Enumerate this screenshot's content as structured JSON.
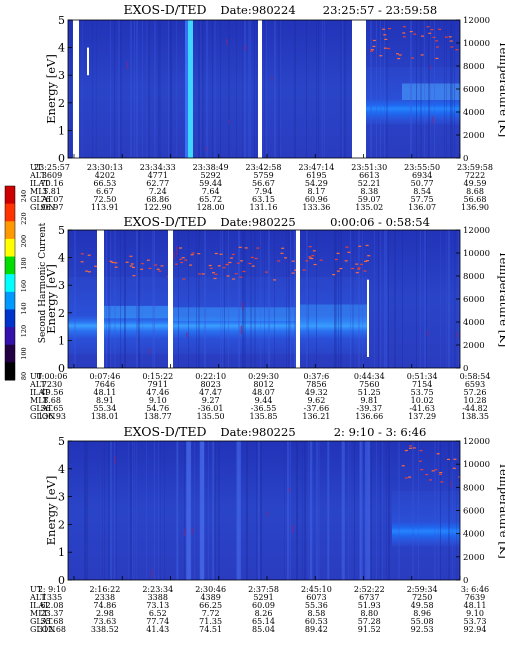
{
  "colorbar": {
    "label": "Second Harmonic Current",
    "ticks": [
      "240",
      "220",
      "200",
      "180",
      "160",
      "140",
      "120",
      "100",
      "80"
    ],
    "colors": [
      "#cc0000",
      "#ff3300",
      "#ff9900",
      "#ffff00",
      "#00dd00",
      "#00ffff",
      "#0099ff",
      "#0033cc",
      "#3311aa",
      "#220044",
      "#000000"
    ]
  },
  "chart_data": [
    {
      "type": "heatmap",
      "title": "EXOS-D/TED",
      "date_label": "Date:980224",
      "time_range": "23:25:57 - 23:59:58",
      "ylabel": "Energy [eV]",
      "ylabel_right": "Temperature [K]",
      "ylim": [
        0,
        5
      ],
      "ylim_right": [
        0,
        12000
      ],
      "yticks": [
        "0",
        "1",
        "2",
        "3",
        "4",
        "5"
      ],
      "yticks_right": [
        "0",
        "2000",
        "4000",
        "6000",
        "8000",
        "10000",
        "12000"
      ],
      "row_labels": [
        "UT",
        "ALT",
        "ILAT",
        "MLT",
        "GLAT",
        "GLON"
      ],
      "columns": [
        [
          "23:25:57",
          "3609",
          "70.16",
          "5.81",
          "76.07",
          "96.97"
        ],
        [
          "23:30:13",
          "4202",
          "66.53",
          "6.67",
          "72.50",
          "113.91"
        ],
        [
          "23:34:33",
          "4771",
          "62.77",
          "7.24",
          "68.86",
          "122.90"
        ],
        [
          "23:38:49",
          "5292",
          "59.44",
          "7.64",
          "65.72",
          "128.00"
        ],
        [
          "23:42:58",
          "5759",
          "56.67",
          "7.94",
          "63.15",
          "131.16"
        ],
        [
          "23:47:14",
          "6195",
          "54.29",
          "8.17",
          "60.96",
          "133.36"
        ],
        [
          "23:51:30",
          "6613",
          "52.21",
          "8.38",
          "59.07",
          "135.02"
        ],
        [
          "23:55:50",
          "6934",
          "50.77",
          "8.54",
          "57.75",
          "136.07"
        ],
        [
          "23:59:58",
          "7222",
          "49.59",
          "8.68",
          "56.68",
          "136.90"
        ]
      ]
    },
    {
      "type": "heatmap",
      "title": "EXOS-D/TED",
      "date_label": "Date:980225",
      "time_range": "0:00:06 - 0:58:54",
      "ylabel": "Energy [eV]",
      "ylabel_right": "Temperature [K]",
      "ylim": [
        0,
        5
      ],
      "ylim_right": [
        0,
        12000
      ],
      "yticks": [
        "0",
        "1",
        "2",
        "3",
        "4",
        "5"
      ],
      "yticks_right": [
        "0",
        "2000",
        "4000",
        "6000",
        "8000",
        "10000",
        "12000"
      ],
      "row_labels": [
        "UT",
        "ALT",
        "ILAT",
        "MLT",
        "GLAT",
        "GLON"
      ],
      "columns": [
        [
          "0:00:06",
          "7230",
          "49.56",
          "8.68",
          "56.65",
          "136.93"
        ],
        [
          "0:07:46",
          "7646",
          "48.11",
          "8.91",
          "55.34",
          "138.01"
        ],
        [
          "0:15:22",
          "7911",
          "47.46",
          "9.10",
          "54.76",
          "138.77"
        ],
        [
          "0:22:10",
          "8023",
          "47.47",
          "9.27",
          "-36.01",
          "135.50"
        ],
        [
          "0:29:30",
          "8012",
          "48.07",
          "9.44",
          "-36.55",
          "135.85"
        ],
        [
          "0:37:6",
          "7856",
          "49.32",
          "9.62",
          "-37.66",
          "136.21"
        ],
        [
          "0:44:34",
          "7560",
          "51.25",
          "9.81",
          "-39.37",
          "136.66"
        ],
        [
          "0:51:34",
          "7154",
          "53.75",
          "10.02",
          "-41.63",
          "137.29"
        ],
        [
          "0:58:54",
          "6593",
          "57.26",
          "10.28",
          "-44.82",
          "138.35"
        ]
      ]
    },
    {
      "type": "heatmap",
      "title": "EXOS-D/TED",
      "date_label": "Date:980225",
      "time_range": "2: 9:10 - 3: 6:46",
      "ylabel": "Energy [eV]",
      "ylabel_right": "Temperature [K]",
      "ylim": [
        0,
        5
      ],
      "ylim_right": [
        0,
        12000
      ],
      "yticks": [
        "0",
        "1",
        "2",
        "3",
        "4",
        "5"
      ],
      "yticks_right": [
        "0",
        "2000",
        "4000",
        "6000",
        "8000",
        "10000",
        "12000"
      ],
      "row_labels": [
        "UT",
        "ALT",
        "ILAT",
        "MLT",
        "GLAT",
        "GLON"
      ],
      "columns": [
        [
          "2: 9:10",
          "1335",
          "62.08",
          "23.37",
          "55.68",
          "312.68"
        ],
        [
          "2:16:22",
          "2338",
          "74.86",
          "2.98",
          "73.63",
          "338.52"
        ],
        [
          "2:23:34",
          "3388",
          "73.13",
          "6.52",
          "77.74",
          "41.43"
        ],
        [
          "2:30:46",
          "4389",
          "66.25",
          "7.72",
          "71.35",
          "74.51"
        ],
        [
          "2:37:58",
          "5291",
          "60.09",
          "8.26",
          "65.14",
          "85.04"
        ],
        [
          "2:45:10",
          "6073",
          "55.36",
          "8.58",
          "60.53",
          "89.42"
        ],
        [
          "2:52:22",
          "6737",
          "51.93",
          "8.80",
          "57.28",
          "91.52"
        ],
        [
          "2:59:34",
          "7250",
          "49.58",
          "8.96",
          "55.08",
          "92.53"
        ],
        [
          "3: 6:46",
          "7639",
          "48.11",
          "9.10",
          "53.73",
          "92.94"
        ]
      ]
    }
  ]
}
